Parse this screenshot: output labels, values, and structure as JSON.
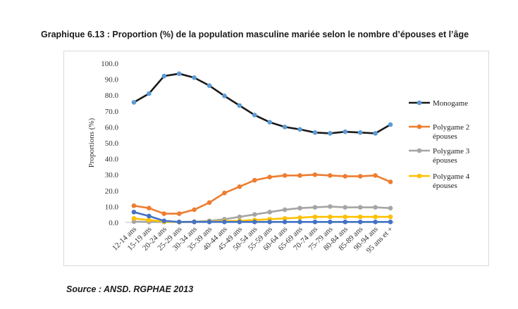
{
  "title": "Graphique 6.13 : Proportion (%) de la population masculine mariée selon le nombre d’épouses et l’âge",
  "source": "Source : ANSD. RGPHAE 2013",
  "chart_data": {
    "type": "line",
    "ylabel": "Proportions (%)",
    "ylim": [
      0,
      100
    ],
    "yticks": [
      "0.0",
      "10.0",
      "20.0",
      "30.0",
      "40.0",
      "50.0",
      "60.0",
      "70.0",
      "80.0",
      "90.0",
      "100.0"
    ],
    "grid": false,
    "legend_position": "right",
    "categories": [
      "12-14 ans",
      "15-19 ans",
      "20-24 ans",
      "25-29 ans",
      "30-34 ans",
      "35-39 ans",
      "40-44 ans",
      "45-49 ans",
      "50-54 ans",
      "55-59 ans",
      "60-64 ans",
      "65-69 ans",
      "70-74 ans",
      "75-79 ans",
      "80-84 ans",
      "85-89 ans",
      "90-94 ans",
      "95 ans et +"
    ],
    "series": [
      {
        "name": "Monogame",
        "color": "#1a1a1a",
        "marker_color": "#5b9bd5",
        "values": [
          75.5,
          81,
          92,
          93.5,
          91,
          86,
          79.5,
          73.5,
          67.5,
          63,
          60,
          58.5,
          56.5,
          56,
          57,
          56.5,
          56,
          61.5
        ]
      },
      {
        "name": "Polygame 2 épouses",
        "color": "#ed7d31",
        "marker_color": "#ed7d31",
        "values": [
          10.5,
          9,
          5.5,
          5.5,
          8,
          12.5,
          18.5,
          22.5,
          26.5,
          28.5,
          29.5,
          29.5,
          30,
          29.5,
          29,
          29,
          29.5,
          25.5
        ]
      },
      {
        "name": "Polygame 3 épouses",
        "color": "#a5a5a5",
        "marker_color": "#a5a5a5",
        "values": [
          0.5,
          0.3,
          0.3,
          0.3,
          0.5,
          1,
          2,
          3.5,
          5,
          6.5,
          8,
          9,
          9.5,
          10,
          9.5,
          9.5,
          9.5,
          9
        ]
      },
      {
        "name": "Polygame 4 épouses",
        "color": "#ffc000",
        "marker_color": "#ffc000",
        "values": [
          2.5,
          1.5,
          0.5,
          0.2,
          0.3,
          0.5,
          0.8,
          1,
          1.5,
          2,
          2.5,
          3,
          3.5,
          3.5,
          3.5,
          3.5,
          3.5,
          3.5
        ]
      },
      {
        "name": "",
        "color": "#4472c4",
        "marker_color": "#4472c4",
        "values": [
          6.5,
          4,
          1,
          0.3,
          0.3,
          0.3,
          0.3,
          0.3,
          0.3,
          0.3,
          0.3,
          0.3,
          0.3,
          0.3,
          0.3,
          0.3,
          0.3,
          0.3
        ]
      }
    ]
  }
}
